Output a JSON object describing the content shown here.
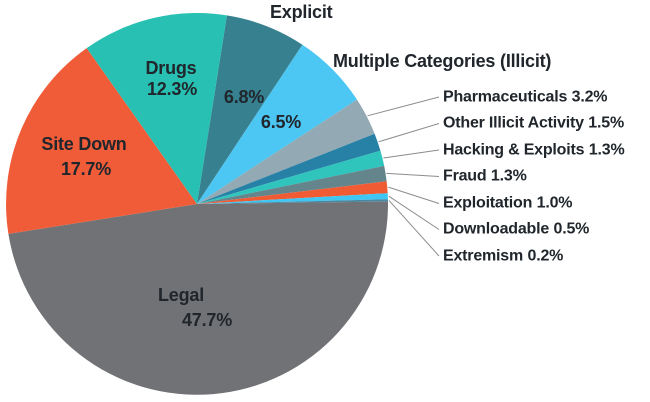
{
  "chart_data": {
    "type": "pie",
    "title": "",
    "unit": "%",
    "direction": "clockwise",
    "start_angle_from_top_deg": 9,
    "legend": "none",
    "callout_side": "right",
    "leader_line_color": "#8a8c8e",
    "text_color": "#20262c",
    "slices": [
      {
        "name": "Explicit",
        "value": 6.8,
        "value_label": "6.8%",
        "color": "#36808f"
      },
      {
        "name": "Multiple Categories (Illicit)",
        "value": 6.5,
        "value_label": "6.5%",
        "color": "#4cc6f2"
      },
      {
        "name": "Pharmaceuticals",
        "value": 3.2,
        "value_label": "3.2%",
        "color": "#93a9b4"
      },
      {
        "name": "Other Illicit Activity",
        "value": 1.5,
        "value_label": "1.5%",
        "color": "#2781a6"
      },
      {
        "name": "Hacking & Exploits",
        "value": 1.3,
        "value_label": "1.3%",
        "color": "#2fc4bc"
      },
      {
        "name": "Fraud",
        "value": 1.3,
        "value_label": "1.3%",
        "color": "#64858c"
      },
      {
        "name": "Exploitation",
        "value": 1.0,
        "value_label": "1.0%",
        "color": "#f15b34"
      },
      {
        "name": "Downloadable",
        "value": 0.5,
        "value_label": "0.5%",
        "color": "#3fc6f3"
      },
      {
        "name": "Extremism",
        "value": 0.2,
        "value_label": "0.2%",
        "color": "#4a87a0"
      },
      {
        "name": "Legal",
        "value": 47.7,
        "value_label": "47.7%",
        "color": "#717276"
      },
      {
        "name": "Site Down",
        "value": 17.7,
        "value_label": "17.7%",
        "color": "#f15c38"
      },
      {
        "name": "Drugs",
        "value": 12.3,
        "value_label": "12.3%",
        "color": "#28c0b2"
      }
    ]
  }
}
